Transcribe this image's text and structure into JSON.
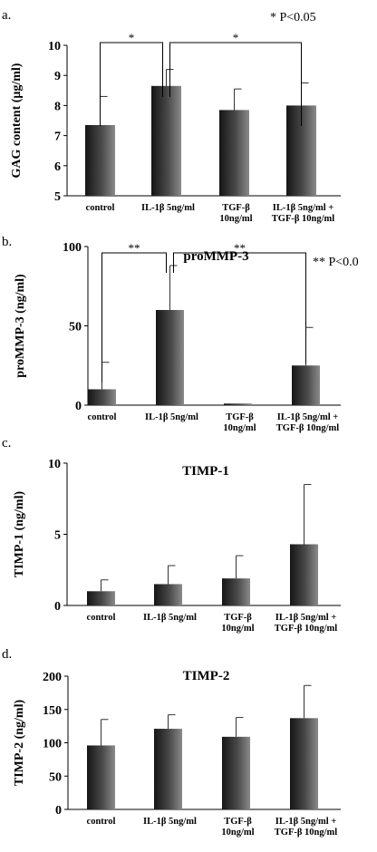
{
  "chart_data": [
    {
      "type": "bar",
      "panel_label": "a.",
      "title": "",
      "significance_note": "* P<0.05",
      "ylabel": "GAG content (μg/ml)",
      "ylim": [
        5,
        10
      ],
      "yticks": [
        "5",
        "6",
        "7",
        "8",
        "9",
        "10"
      ],
      "categories": [
        [
          "control"
        ],
        [
          "IL-1β 5ng/ml"
        ],
        [
          "TGF-β",
          "10ng/ml"
        ],
        [
          "IL-1β 5ng/ml +",
          "TGF-β 10ng/ml"
        ]
      ],
      "values": [
        7.35,
        8.65,
        7.85,
        8.0
      ],
      "errors": [
        0.95,
        0.55,
        0.7,
        0.75
      ],
      "brackets": [
        {
          "from": 0,
          "to": 1,
          "label": "*"
        },
        {
          "from": 1,
          "to": 3,
          "label": "*"
        }
      ]
    },
    {
      "type": "bar",
      "panel_label": "b.",
      "title": "proMMP-3",
      "significance_note": "** P<0.0",
      "ylabel": "proMMP-3 (ng/ml)",
      "ylim": [
        0,
        100
      ],
      "yticks": [
        "0",
        "50",
        "100"
      ],
      "categories": [
        [
          "control"
        ],
        [
          "IL-1β 5ng/ml"
        ],
        [
          "TGF-β",
          "10ng/ml"
        ],
        [
          "IL-1β 5ng/ml +",
          "TGF-β 10ng/ml"
        ]
      ],
      "values": [
        10,
        60,
        1,
        25
      ],
      "errors": [
        17,
        28,
        0,
        24
      ],
      "brackets": [
        {
          "from": 0,
          "to": 1,
          "label": "**"
        },
        {
          "from": 1,
          "to": 3,
          "label": "**"
        }
      ]
    },
    {
      "type": "bar",
      "panel_label": "c.",
      "title": "TIMP-1",
      "ylabel": "TIMP-1 (ng/ml)",
      "ylim": [
        0,
        10
      ],
      "yticks": [
        "0",
        "5",
        "10"
      ],
      "categories": [
        [
          "control"
        ],
        [
          "IL-1β 5ng/ml"
        ],
        [
          "TGF-β",
          "10ng/ml"
        ],
        [
          "IL-1β 5ng/ml +",
          "TGF-β 10ng/ml"
        ]
      ],
      "values": [
        1.0,
        1.5,
        1.9,
        4.3
      ],
      "errors": [
        0.8,
        1.3,
        1.6,
        4.2
      ],
      "brackets": []
    },
    {
      "type": "bar",
      "panel_label": "d.",
      "title": "TIMP-2",
      "ylabel": "TIMP-2 (ng/ml)",
      "ylim": [
        0,
        200
      ],
      "yticks": [
        "0",
        "50",
        "100",
        "150",
        "200"
      ],
      "categories": [
        [
          "control"
        ],
        [
          "IL-1β 5ng/ml"
        ],
        [
          "TGF-β",
          "10ng/ml"
        ],
        [
          "IL-1β 5ng/ml +",
          "TGF-β 10ng/ml"
        ]
      ],
      "values": [
        96,
        121,
        109,
        137
      ],
      "errors": [
        39,
        21,
        29,
        49
      ],
      "brackets": []
    }
  ]
}
